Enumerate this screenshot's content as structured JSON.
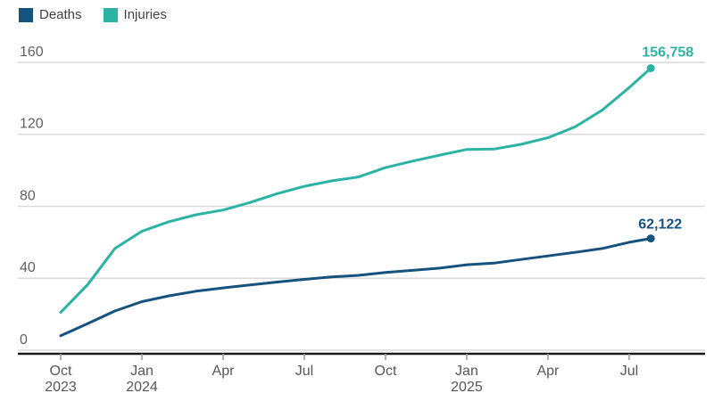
{
  "legend": {
    "items": [
      {
        "label": "Deaths",
        "color": "#15527e"
      },
      {
        "label": "Injuries",
        "color": "#2bb3a3"
      }
    ]
  },
  "chart_data": {
    "type": "line",
    "title": "",
    "xlabel": "",
    "ylabel": "",
    "values_in": "thousands",
    "ylim": [
      0,
      165
    ],
    "yticks": [
      0,
      40,
      80,
      120,
      160
    ],
    "grid": true,
    "legend_position": "top-left",
    "x_unit": "months since Oct 2023",
    "x": [
      0,
      1,
      2,
      3,
      4,
      5,
      6,
      7,
      8,
      9,
      10,
      11,
      12,
      13,
      14,
      15,
      16,
      17,
      18,
      19,
      20,
      21,
      21.8
    ],
    "months": [
      "Oct 2023",
      "Nov 2023",
      "Dec 2023",
      "Jan 2024",
      "Feb 2024",
      "Mar 2024",
      "Apr 2024",
      "May 2024",
      "Jun 2024",
      "Jul 2024",
      "Aug 2024",
      "Sep 2024",
      "Oct 2024",
      "Nov 2024",
      "Dec 2024",
      "Jan 2025",
      "Feb 2025",
      "Mar 2025",
      "Apr 2025",
      "May 2025",
      "Jun 2025",
      "Jul 2025",
      "Aug 2025"
    ],
    "xticks": [
      {
        "m": 0,
        "line1": "Oct",
        "line2": "2023"
      },
      {
        "m": 3,
        "line1": "Jan",
        "line2": "2024"
      },
      {
        "m": 6,
        "line1": "Apr",
        "line2": ""
      },
      {
        "m": 9,
        "line1": "Jul",
        "line2": ""
      },
      {
        "m": 12,
        "line1": "Oct",
        "line2": ""
      },
      {
        "m": 15,
        "line1": "Jan",
        "line2": "2025"
      },
      {
        "m": 18,
        "line1": "Apr",
        "line2": ""
      },
      {
        "m": 21,
        "line1": "Jul",
        "line2": ""
      }
    ],
    "series": [
      {
        "name": "Deaths",
        "color": "#15527e",
        "end_label": "62,122",
        "values": [
          8.0,
          14.8,
          21.8,
          27.0,
          30.2,
          32.8,
          34.6,
          36.3,
          37.9,
          39.4,
          40.7,
          41.6,
          43.2,
          44.4,
          45.6,
          47.5,
          48.4,
          50.4,
          52.4,
          54.4,
          56.5,
          60.0,
          62.122
        ]
      },
      {
        "name": "Injuries",
        "color": "#2bb3a3",
        "end_label": "156,758",
        "values": [
          21.0,
          36.5,
          56.5,
          66.1,
          71.4,
          75.3,
          77.9,
          82.1,
          87.0,
          91.1,
          94.1,
          96.3,
          101.5,
          105.1,
          108.4,
          111.6,
          111.8,
          114.4,
          118.1,
          124.1,
          133.4,
          145.9,
          156.758
        ]
      }
    ],
    "colors": {
      "grid": "#d9d9d9",
      "axis": "#191919",
      "tick": "#999999",
      "xtick_label": "#575757",
      "ytick_label": "#606060",
      "legend_text": "#404040",
      "background": "#ffffff"
    }
  }
}
